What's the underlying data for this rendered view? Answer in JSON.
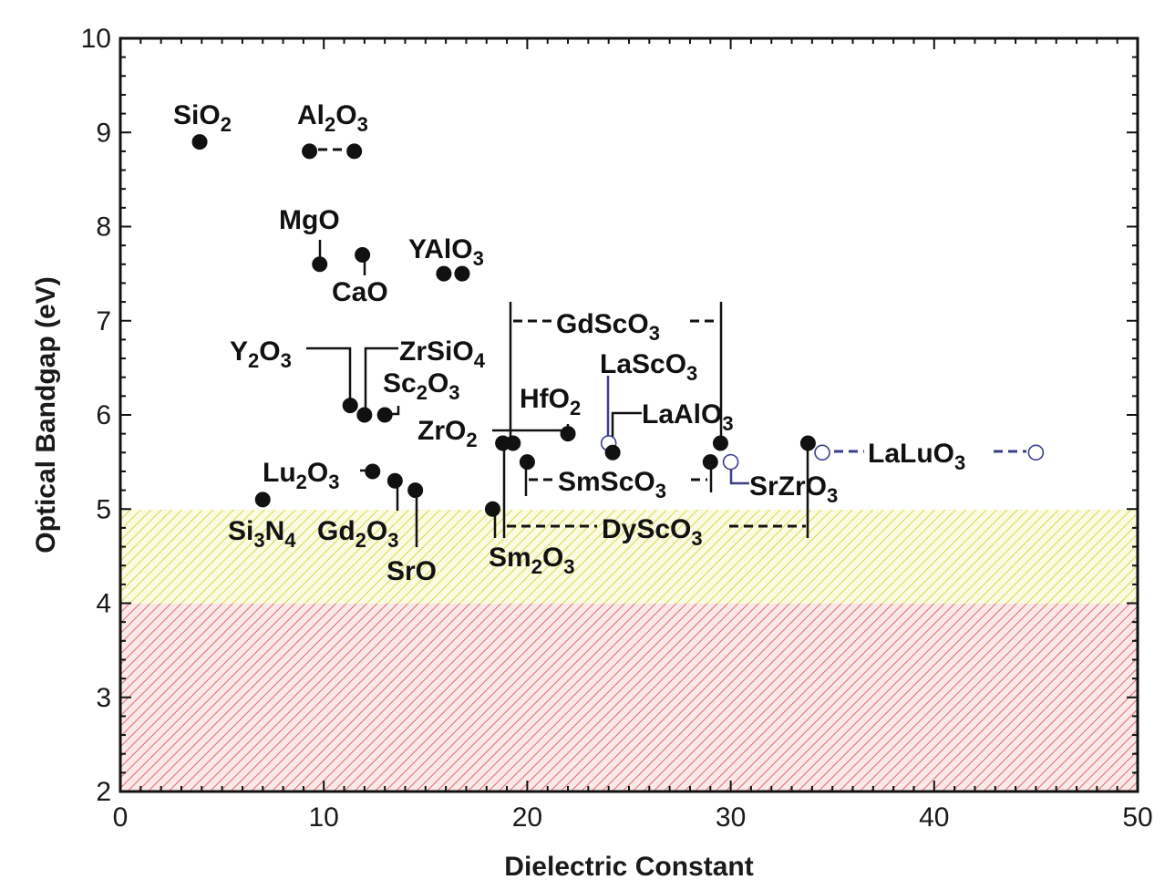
{
  "chart_data": {
    "type": "scatter",
    "xlabel": "Dielectric Constant",
    "ylabel": "Optical Bandgap (eV)",
    "xlim": [
      0,
      50
    ],
    "ylim": [
      2,
      10
    ],
    "xticks": [
      0,
      10,
      20,
      30,
      40,
      50
    ],
    "yticks": [
      2,
      3,
      4,
      5,
      6,
      7,
      8,
      9,
      10
    ],
    "grid": false,
    "regions": [
      {
        "y_from": 4,
        "y_to": 5,
        "fill": "hatched",
        "color": "#e0e060"
      },
      {
        "y_from": 2,
        "y_to": 4,
        "fill": "hatched",
        "color": "#e06a6a"
      }
    ],
    "points": [
      {
        "x": 3.9,
        "y": 8.9,
        "filled": true
      },
      {
        "x": 9.3,
        "y": 8.8,
        "filled": true
      },
      {
        "x": 11.5,
        "y": 8.8,
        "filled": true
      },
      {
        "x": 9.8,
        "y": 7.6,
        "filled": true
      },
      {
        "x": 11.9,
        "y": 7.7,
        "filled": true
      },
      {
        "x": 15.9,
        "y": 7.5,
        "filled": true
      },
      {
        "x": 16.8,
        "y": 7.5,
        "filled": true
      },
      {
        "x": 11.3,
        "y": 6.1,
        "filled": true
      },
      {
        "x": 12.0,
        "y": 6.0,
        "filled": true
      },
      {
        "x": 13.0,
        "y": 6.0,
        "filled": true
      },
      {
        "x": 7.0,
        "y": 5.1,
        "filled": true
      },
      {
        "x": 12.4,
        "y": 5.4,
        "filled": true
      },
      {
        "x": 13.5,
        "y": 5.3,
        "filled": true
      },
      {
        "x": 14.5,
        "y": 5.2,
        "filled": true
      },
      {
        "x": 22.0,
        "y": 5.8,
        "filled": true
      },
      {
        "x": 18.8,
        "y": 5.7,
        "filled": true
      },
      {
        "x": 19.3,
        "y": 5.7,
        "filled": true
      },
      {
        "x": 18.3,
        "y": 5.0,
        "filled": true
      },
      {
        "x": 20.0,
        "y": 5.5,
        "filled": true
      },
      {
        "x": 29.0,
        "y": 5.5,
        "filled": true
      },
      {
        "x": 29.5,
        "y": 5.7,
        "filled": true
      },
      {
        "x": 24.0,
        "y": 5.7,
        "filled": false
      },
      {
        "x": 24.2,
        "y": 5.6,
        "filled": true
      },
      {
        "x": 33.8,
        "y": 5.7,
        "filled": true
      },
      {
        "x": 30.0,
        "y": 5.5,
        "filled": false
      },
      {
        "x": 34.5,
        "y": 5.6,
        "filled": false
      },
      {
        "x": 45.0,
        "y": 5.6,
        "filled": false
      }
    ],
    "labels": [
      {
        "key": "SiO2",
        "base": "SiO",
        "sub": "2"
      },
      {
        "key": "Al2O3",
        "base": "Al",
        "sub": "2",
        "base2": "O",
        "sub2": "3"
      },
      {
        "key": "MgO",
        "base": "MgO"
      },
      {
        "key": "CaO",
        "base": "CaO"
      },
      {
        "key": "YAlO3",
        "base": "YAlO",
        "sub": "3"
      },
      {
        "key": "Y2O3",
        "base": "Y",
        "sub": "2",
        "base2": "O",
        "sub2": "3"
      },
      {
        "key": "ZrSiO4",
        "base": "ZrSiO",
        "sub": "4"
      },
      {
        "key": "Sc2O3",
        "base": "Sc",
        "sub": "2",
        "base2": "O",
        "sub2": "3"
      },
      {
        "key": "HfO2",
        "base": "HfO",
        "sub": "2"
      },
      {
        "key": "ZrO2",
        "base": "ZrO",
        "sub": "2"
      },
      {
        "key": "GdScO3",
        "base": "GdScO",
        "sub": "3"
      },
      {
        "key": "LaScO3",
        "base": "LaScO",
        "sub": "3"
      },
      {
        "key": "LaAlO3",
        "base": "LaAlO",
        "sub": "3"
      },
      {
        "key": "SmScO3",
        "base": "SmScO",
        "sub": "3"
      },
      {
        "key": "SrZrO3",
        "base": "SrZrO",
        "sub": "3"
      },
      {
        "key": "LaLuO3",
        "base": "LaLuO",
        "sub": "3"
      },
      {
        "key": "Lu2O3",
        "base": "Lu",
        "sub": "2",
        "base2": "O",
        "sub2": "3"
      },
      {
        "key": "Si3N4",
        "base": "Si",
        "sub": "3",
        "base2": "N",
        "sub2": "4"
      },
      {
        "key": "Gd2O3",
        "base": "Gd",
        "sub": "2",
        "base2": "O",
        "sub2": "3"
      },
      {
        "key": "SrO",
        "base": "SrO"
      },
      {
        "key": "DyScO3",
        "base": "DyScO",
        "sub": "3"
      },
      {
        "key": "Sm2O3",
        "base": "Sm",
        "sub": "2",
        "base2": "O",
        "sub2": "3"
      }
    ]
  }
}
